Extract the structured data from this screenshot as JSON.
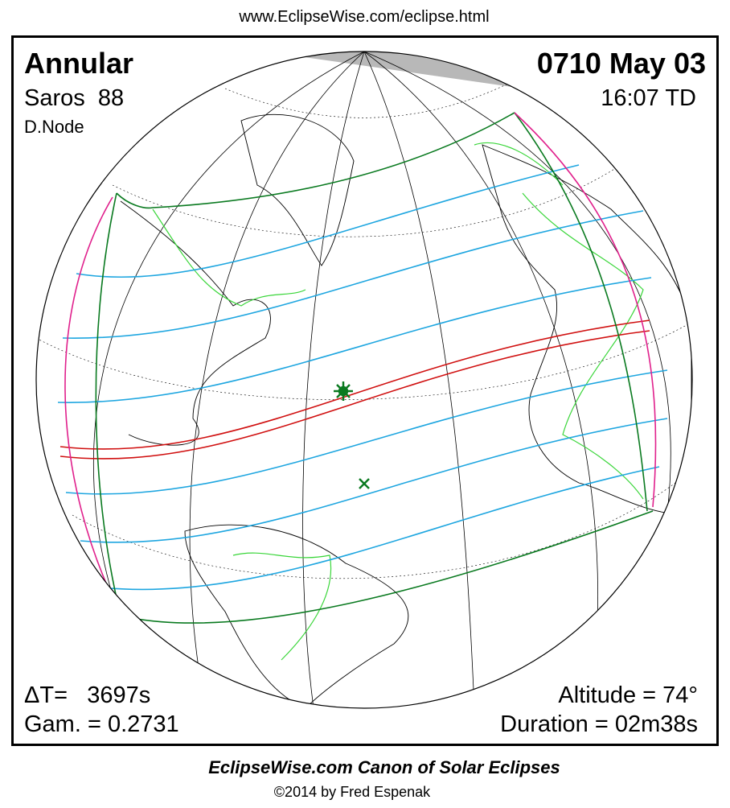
{
  "header": {
    "url": "www.EclipseWise.com/eclipse.html"
  },
  "eclipse": {
    "type": "Annular",
    "saros": "Saros  88",
    "node": "D.Node",
    "date": "0710 May 03",
    "time": "16:07 TD",
    "delta_t": "ΔT=   3697s",
    "gamma": "Gam. = 0.2731",
    "altitude": "Altitude = 74°",
    "duration": "Duration = 02m38s"
  },
  "footer": {
    "title": "EclipseWise.com Canon of Solar Eclipses",
    "copyright": "©2014 by Fred Espenak"
  }
}
